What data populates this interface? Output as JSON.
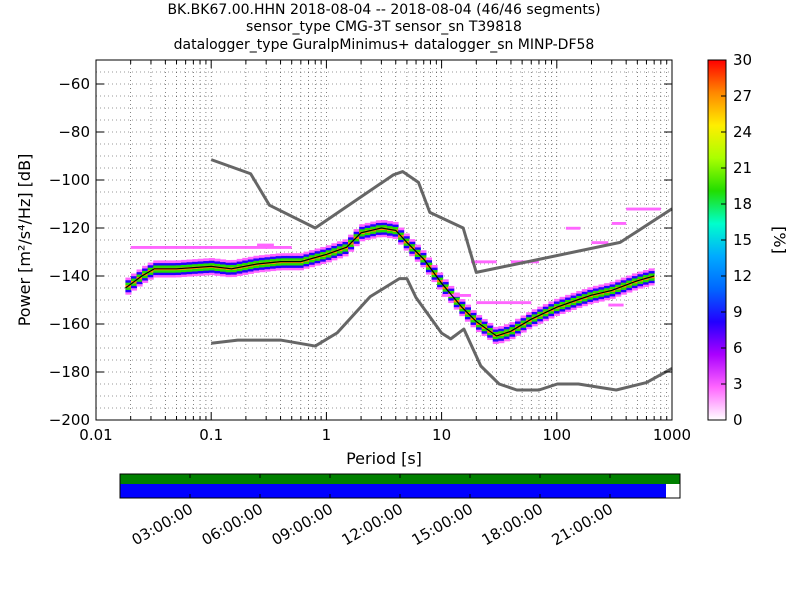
{
  "title": {
    "line1": "BK.BK67.00.HHN   2018-08-04 -- 2018-08-04  (46/46 segments)",
    "line2": "sensor_type CMG-3T sensor_sn T39818",
    "line3": "datalogger_type GuralpMinimus+ datalogger_sn MINP-DF58"
  },
  "chart_data": {
    "type": "heatmap",
    "xlabel": "Period [s]",
    "ylabel": "Power [m²/s⁴/Hz] [dB]",
    "xscale": "log",
    "xlim": [
      0.01,
      1000
    ],
    "ylim": [
      -200,
      -50
    ],
    "x_ticks": [
      {
        "value": 0.01,
        "label": "0.01"
      },
      {
        "value": 0.1,
        "label": "0.1"
      },
      {
        "value": 1,
        "label": "1"
      },
      {
        "value": 10,
        "label": "10"
      },
      {
        "value": 100,
        "label": "100"
      },
      {
        "value": 1000,
        "label": "1000"
      }
    ],
    "y_ticks": [
      -60,
      -80,
      -100,
      -120,
      -140,
      -160,
      -180,
      -200
    ],
    "grid": "dotted, log minor ticks on x, every 5 dB on y",
    "colorbar": {
      "label": "[%]",
      "min": 0,
      "max": 30,
      "ticks": [
        0,
        3,
        6,
        9,
        12,
        15,
        18,
        21,
        24,
        27,
        30
      ],
      "colormap": [
        "#ffffff",
        "#ff66ff",
        "#aa00ff",
        "#2200ff",
        "#0066ff",
        "#00aaff",
        "#00ffcc",
        "#22dd00",
        "#aaff00",
        "#ffee00",
        "#ff8800",
        "#ff0000"
      ]
    },
    "nlnm": {
      "name": "NLNM",
      "color": "#666666",
      "points": [
        [
          0.1,
          -168
        ],
        [
          0.17,
          -166.7
        ],
        [
          0.4,
          -166.7
        ],
        [
          0.8,
          -169.2
        ],
        [
          1.24,
          -163.7
        ],
        [
          2.4,
          -148.6
        ],
        [
          4.3,
          -141.1
        ],
        [
          5.0,
          -141.1
        ],
        [
          6.0,
          -149.0
        ],
        [
          10.0,
          -163.8
        ],
        [
          12.0,
          -166.2
        ],
        [
          15.6,
          -162.1
        ],
        [
          21.9,
          -177.5
        ],
        [
          31.6,
          -185
        ],
        [
          45,
          -187.5
        ],
        [
          70,
          -187.5
        ],
        [
          101,
          -185
        ],
        [
          154,
          -185
        ],
        [
          328,
          -187.5
        ],
        [
          600,
          -184.4
        ],
        [
          1000,
          -178.5
        ]
      ]
    },
    "nhnm": {
      "name": "NHNM",
      "color": "#666666",
      "points": [
        [
          0.1,
          -91.5
        ],
        [
          0.22,
          -97.4
        ],
        [
          0.32,
          -110.5
        ],
        [
          0.8,
          -120
        ],
        [
          3.8,
          -97.9
        ],
        [
          4.6,
          -96.5
        ],
        [
          6.3,
          -101
        ],
        [
          7.9,
          -113.5
        ],
        [
          15.4,
          -120
        ],
        [
          20,
          -138.5
        ],
        [
          354.8,
          -126
        ],
        [
          1000,
          -112
        ]
      ]
    },
    "pdf_band": {
      "description": "probabilistic PSD density of 46 segments",
      "mode_curve": [
        [
          0.018,
          -145
        ],
        [
          0.025,
          -140
        ],
        [
          0.032,
          -137
        ],
        [
          0.05,
          -137
        ],
        [
          0.1,
          -136
        ],
        [
          0.15,
          -137
        ],
        [
          0.25,
          -135
        ],
        [
          0.4,
          -134
        ],
        [
          0.6,
          -134
        ],
        [
          1.0,
          -131
        ],
        [
          1.5,
          -128
        ],
        [
          2.0,
          -122
        ],
        [
          3.0,
          -120
        ],
        [
          4.0,
          -121
        ],
        [
          5.0,
          -126
        ],
        [
          7.0,
          -133
        ],
        [
          10.0,
          -143
        ],
        [
          15.0,
          -153
        ],
        [
          20.0,
          -159
        ],
        [
          30.0,
          -165
        ],
        [
          40.0,
          -163
        ],
        [
          60.0,
          -158
        ],
        [
          100.0,
          -153
        ],
        [
          150.0,
          -150
        ],
        [
          200.0,
          -148
        ],
        [
          300.0,
          -146
        ],
        [
          500.0,
          -142
        ],
        [
          700.0,
          -140
        ]
      ],
      "spread_db": 3.0,
      "outliers": [
        {
          "x": [
            0.02,
            0.5
          ],
          "y": -128,
          "percent": 2
        },
        {
          "x": [
            0.25,
            0.35
          ],
          "y": -127,
          "percent": 3
        },
        {
          "x": [
            10,
            18
          ],
          "y": -148,
          "percent": 3
        },
        {
          "x": [
            18,
            30
          ],
          "y": -134,
          "percent": 2
        },
        {
          "x": [
            20,
            60
          ],
          "y": -151,
          "percent": 3
        },
        {
          "x": [
            40,
            70
          ],
          "y": -134,
          "percent": 2
        },
        {
          "x": [
            120,
            160
          ],
          "y": -120,
          "percent": 2
        },
        {
          "x": [
            200,
            280
          ],
          "y": -126,
          "percent": 2
        },
        {
          "x": [
            300,
            400
          ],
          "y": -118,
          "percent": 2
        },
        {
          "x": [
            400,
            800
          ],
          "y": -112,
          "percent": 2
        },
        {
          "x": [
            280,
            380
          ],
          "y": -152,
          "percent": 2
        }
      ]
    }
  },
  "timeline": {
    "labels": [
      "03:00:00",
      "06:00:00",
      "09:00:00",
      "12:00:00",
      "15:00:00",
      "18:00:00",
      "21:00:00"
    ],
    "hours": [
      3,
      6,
      9,
      12,
      15,
      18,
      21
    ],
    "span_hours": 24,
    "coverage_fraction": 0.975,
    "data_color": "#008000",
    "segment_color": "#0000ff"
  }
}
